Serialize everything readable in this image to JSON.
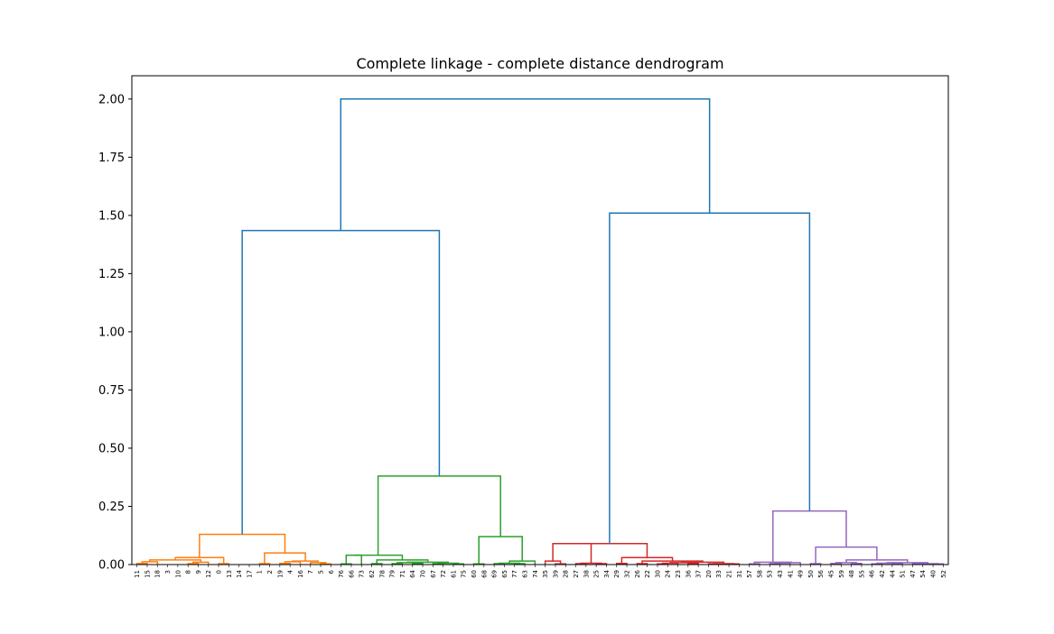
{
  "chart_data": {
    "type": "dendrogram",
    "title": "Complete linkage - complete distance dendrogram",
    "xlabel": "",
    "ylabel": "",
    "ylim": [
      0,
      2.1
    ],
    "yticks": [
      "0.00",
      "0.25",
      "0.50",
      "0.75",
      "1.00",
      "1.25",
      "1.50",
      "1.75",
      "2.00"
    ],
    "grid": false,
    "leaf_order": [
      "11",
      "15",
      "18",
      "3",
      "10",
      "8",
      "9",
      "12",
      "0",
      "13",
      "14",
      "17",
      "1",
      "2",
      "19",
      "4",
      "16",
      "7",
      "5",
      "6",
      "76",
      "66",
      "73",
      "62",
      "78",
      "79",
      "71",
      "64",
      "70",
      "67",
      "72",
      "61",
      "75",
      "60",
      "68",
      "69",
      "65",
      "77",
      "63",
      "74",
      "35",
      "39",
      "28",
      "27",
      "38",
      "25",
      "34",
      "29",
      "32",
      "26",
      "22",
      "30",
      "24",
      "23",
      "36",
      "37",
      "20",
      "33",
      "21",
      "31",
      "57",
      "58",
      "53",
      "43",
      "41",
      "49",
      "50",
      "56",
      "45",
      "59",
      "48",
      "55",
      "46",
      "42",
      "44",
      "51",
      "47",
      "54",
      "40",
      "52"
    ],
    "colors": {
      "above_threshold": "#1f77b4",
      "clusters": [
        "#ff7f0e",
        "#2ca02c",
        "#d62728",
        "#9467bd"
      ]
    },
    "merges": [
      {
        "id": "a1",
        "l": "0",
        "r": "1",
        "h": 0.005,
        "c": 0
      },
      {
        "id": "a2",
        "l": "a1",
        "r": "2",
        "h": 0.012,
        "c": 0
      },
      {
        "id": "a3",
        "l": "5",
        "r": "6",
        "h": 0.004,
        "c": 0
      },
      {
        "id": "a4",
        "l": "7",
        "r": "a3",
        "h": 0.01,
        "c": 0
      },
      {
        "id": "a5",
        "l": "8",
        "r": "9",
        "h": 0.004,
        "c": 0
      },
      {
        "id": "a6",
        "l": "a2",
        "r": "a4",
        "h": 0.02,
        "c": 0
      },
      {
        "id": "a7",
        "l": "a6",
        "r": "a5",
        "h": 0.03,
        "c": 0
      },
      {
        "id": "a8",
        "l": "12",
        "r": "13",
        "h": 0.004,
        "c": 0
      },
      {
        "id": "a9",
        "l": "14",
        "r": "15",
        "h": 0.005,
        "c": 0
      },
      {
        "id": "a10",
        "l": "a9",
        "r": "16",
        "h": 0.012,
        "c": 0
      },
      {
        "id": "a11",
        "l": "18",
        "r": "19",
        "h": 0.003,
        "c": 0
      },
      {
        "id": "a12",
        "l": "17",
        "r": "a11",
        "h": 0.008,
        "c": 0
      },
      {
        "id": "a13",
        "l": "a10",
        "r": "a12",
        "h": 0.015,
        "c": 0
      },
      {
        "id": "a14",
        "l": "a8",
        "r": "a13",
        "h": 0.05,
        "c": 0
      },
      {
        "id": "a15",
        "l": "a7",
        "r": "a14",
        "h": 0.13,
        "c": 0
      },
      {
        "id": "b1",
        "l": "20",
        "r": "21",
        "h": 0.003,
        "c": 1
      },
      {
        "id": "b2",
        "l": "b1",
        "r": "22",
        "h": 0.04,
        "c": 1
      },
      {
        "id": "b3",
        "l": "23",
        "r": "24",
        "h": 0.004,
        "c": 1
      },
      {
        "id": "b4",
        "l": "25",
        "r": "26",
        "h": 0.004,
        "c": 1
      },
      {
        "id": "b5",
        "l": "27",
        "r": "28",
        "h": 0.005,
        "c": 1
      },
      {
        "id": "b6",
        "l": "b4",
        "r": "b5",
        "h": 0.008,
        "c": 1
      },
      {
        "id": "b7",
        "l": "29",
        "r": "30",
        "h": 0.004,
        "c": 1
      },
      {
        "id": "b8",
        "l": "31",
        "r": "32",
        "h": 0.003,
        "c": 1
      },
      {
        "id": "b9",
        "l": "b7",
        "r": "b8",
        "h": 0.006,
        "c": 1
      },
      {
        "id": "b10",
        "l": "b6",
        "r": "b9",
        "h": 0.01,
        "c": 1
      },
      {
        "id": "b11",
        "l": "b3",
        "r": "b10",
        "h": 0.02,
        "c": 1
      },
      {
        "id": "b12",
        "l": "b2",
        "r": "b11",
        "h": 0.04,
        "c": 1
      },
      {
        "id": "b13",
        "l": "33",
        "r": "34",
        "h": 0.003,
        "c": 1
      },
      {
        "id": "b14",
        "l": "35",
        "r": "36",
        "h": 0.004,
        "c": 1
      },
      {
        "id": "b15",
        "l": "37",
        "r": "38",
        "h": 0.004,
        "c": 1
      },
      {
        "id": "b16",
        "l": "b14",
        "r": "b15",
        "h": 0.006,
        "c": 1
      },
      {
        "id": "b17",
        "l": "b16",
        "r": "39",
        "h": 0.015,
        "c": 1
      },
      {
        "id": "b18",
        "l": "b13",
        "r": "b17",
        "h": 0.12,
        "c": 1
      },
      {
        "id": "b19",
        "l": "b12",
        "r": "b18",
        "h": 0.38,
        "c": 1
      },
      {
        "id": "c1",
        "l": "41",
        "r": "42",
        "h": 0.003,
        "c": 2
      },
      {
        "id": "c2",
        "l": "40",
        "r": "c1",
        "h": 0.015,
        "c": 2
      },
      {
        "id": "c3",
        "l": "43",
        "r": "44",
        "h": 0.004,
        "c": 2
      },
      {
        "id": "c4",
        "l": "45",
        "r": "46",
        "h": 0.004,
        "c": 2
      },
      {
        "id": "c5",
        "l": "c3",
        "r": "c4",
        "h": 0.006,
        "c": 2
      },
      {
        "id": "c6",
        "l": "c2",
        "r": "c5",
        "h": 0.09,
        "c": 2
      },
      {
        "id": "c7",
        "l": "47",
        "r": "48",
        "h": 0.005,
        "c": 2
      },
      {
        "id": "c8",
        "l": "49",
        "r": "50",
        "h": 0.004,
        "c": 2
      },
      {
        "id": "c9",
        "l": "51",
        "r": "52",
        "h": 0.003,
        "c": 2
      },
      {
        "id": "c10",
        "l": "c9",
        "r": "53",
        "h": 0.006,
        "c": 2
      },
      {
        "id": "c11",
        "l": "54",
        "r": "55",
        "h": 0.005,
        "c": 2
      },
      {
        "id": "c12",
        "l": "c10",
        "r": "c11",
        "h": 0.008,
        "c": 2
      },
      {
        "id": "c13",
        "l": "56",
        "r": "57",
        "h": 0.003,
        "c": 2
      },
      {
        "id": "c14",
        "l": "58",
        "r": "59",
        "h": 0.003,
        "c": 2
      },
      {
        "id": "c15",
        "l": "c13",
        "r": "c14",
        "h": 0.004,
        "c": 2
      },
      {
        "id": "c16",
        "l": "c12",
        "r": "c15",
        "h": 0.01,
        "c": 2
      },
      {
        "id": "c17",
        "l": "c8",
        "r": "c16",
        "h": 0.015,
        "c": 2
      },
      {
        "id": "c18",
        "l": "c7",
        "r": "c17",
        "h": 0.03,
        "c": 2
      },
      {
        "id": "c19",
        "l": "c6",
        "r": "c18",
        "h": 0.09,
        "c": 2
      },
      {
        "id": "d1",
        "l": "60",
        "r": "61",
        "h": 0.003,
        "c": 3
      },
      {
        "id": "d2",
        "l": "62",
        "r": "63",
        "h": 0.004,
        "c": 3
      },
      {
        "id": "d3",
        "l": "d2",
        "r": "64",
        "h": 0.006,
        "c": 3
      },
      {
        "id": "d4",
        "l": "d3",
        "r": "65",
        "h": 0.008,
        "c": 3
      },
      {
        "id": "d5",
        "l": "d1",
        "r": "d4",
        "h": 0.01,
        "c": 3
      },
      {
        "id": "d6",
        "l": "66",
        "r": "67",
        "h": 0.004,
        "c": 3
      },
      {
        "id": "d7",
        "l": "68",
        "r": "69",
        "h": 0.005,
        "c": 3
      },
      {
        "id": "d8",
        "l": "70",
        "r": "71",
        "h": 0.005,
        "c": 3
      },
      {
        "id": "d9",
        "l": "d7",
        "r": "d8",
        "h": 0.008,
        "c": 3
      },
      {
        "id": "d10",
        "l": "72",
        "r": "73",
        "h": 0.003,
        "c": 3
      },
      {
        "id": "d11",
        "l": "74",
        "r": "75",
        "h": 0.004,
        "c": 3
      },
      {
        "id": "d12",
        "l": "d10",
        "r": "d11",
        "h": 0.006,
        "c": 3
      },
      {
        "id": "d13",
        "l": "76",
        "r": "77",
        "h": 0.003,
        "c": 3
      },
      {
        "id": "d14",
        "l": "78",
        "r": "79",
        "h": 0.003,
        "c": 3
      },
      {
        "id": "d15",
        "l": "d13",
        "r": "d14",
        "h": 0.004,
        "c": 3
      },
      {
        "id": "d16",
        "l": "d12",
        "r": "d15",
        "h": 0.008,
        "c": 3
      },
      {
        "id": "d17",
        "l": "d9",
        "r": "d16",
        "h": 0.02,
        "c": 3
      },
      {
        "id": "d18",
        "l": "d6",
        "r": "d17",
        "h": 0.075,
        "c": 3
      },
      {
        "id": "d19",
        "l": "d5",
        "r": "d18",
        "h": 0.23,
        "c": 3
      },
      {
        "id": "t1",
        "l": "a15",
        "r": "b19",
        "h": 1.435,
        "c": -1
      },
      {
        "id": "t2",
        "l": "c19",
        "r": "d19",
        "h": 1.51,
        "c": -1
      },
      {
        "id": "t3",
        "l": "t1",
        "r": "t2",
        "h": 2.0,
        "c": -1
      }
    ]
  }
}
